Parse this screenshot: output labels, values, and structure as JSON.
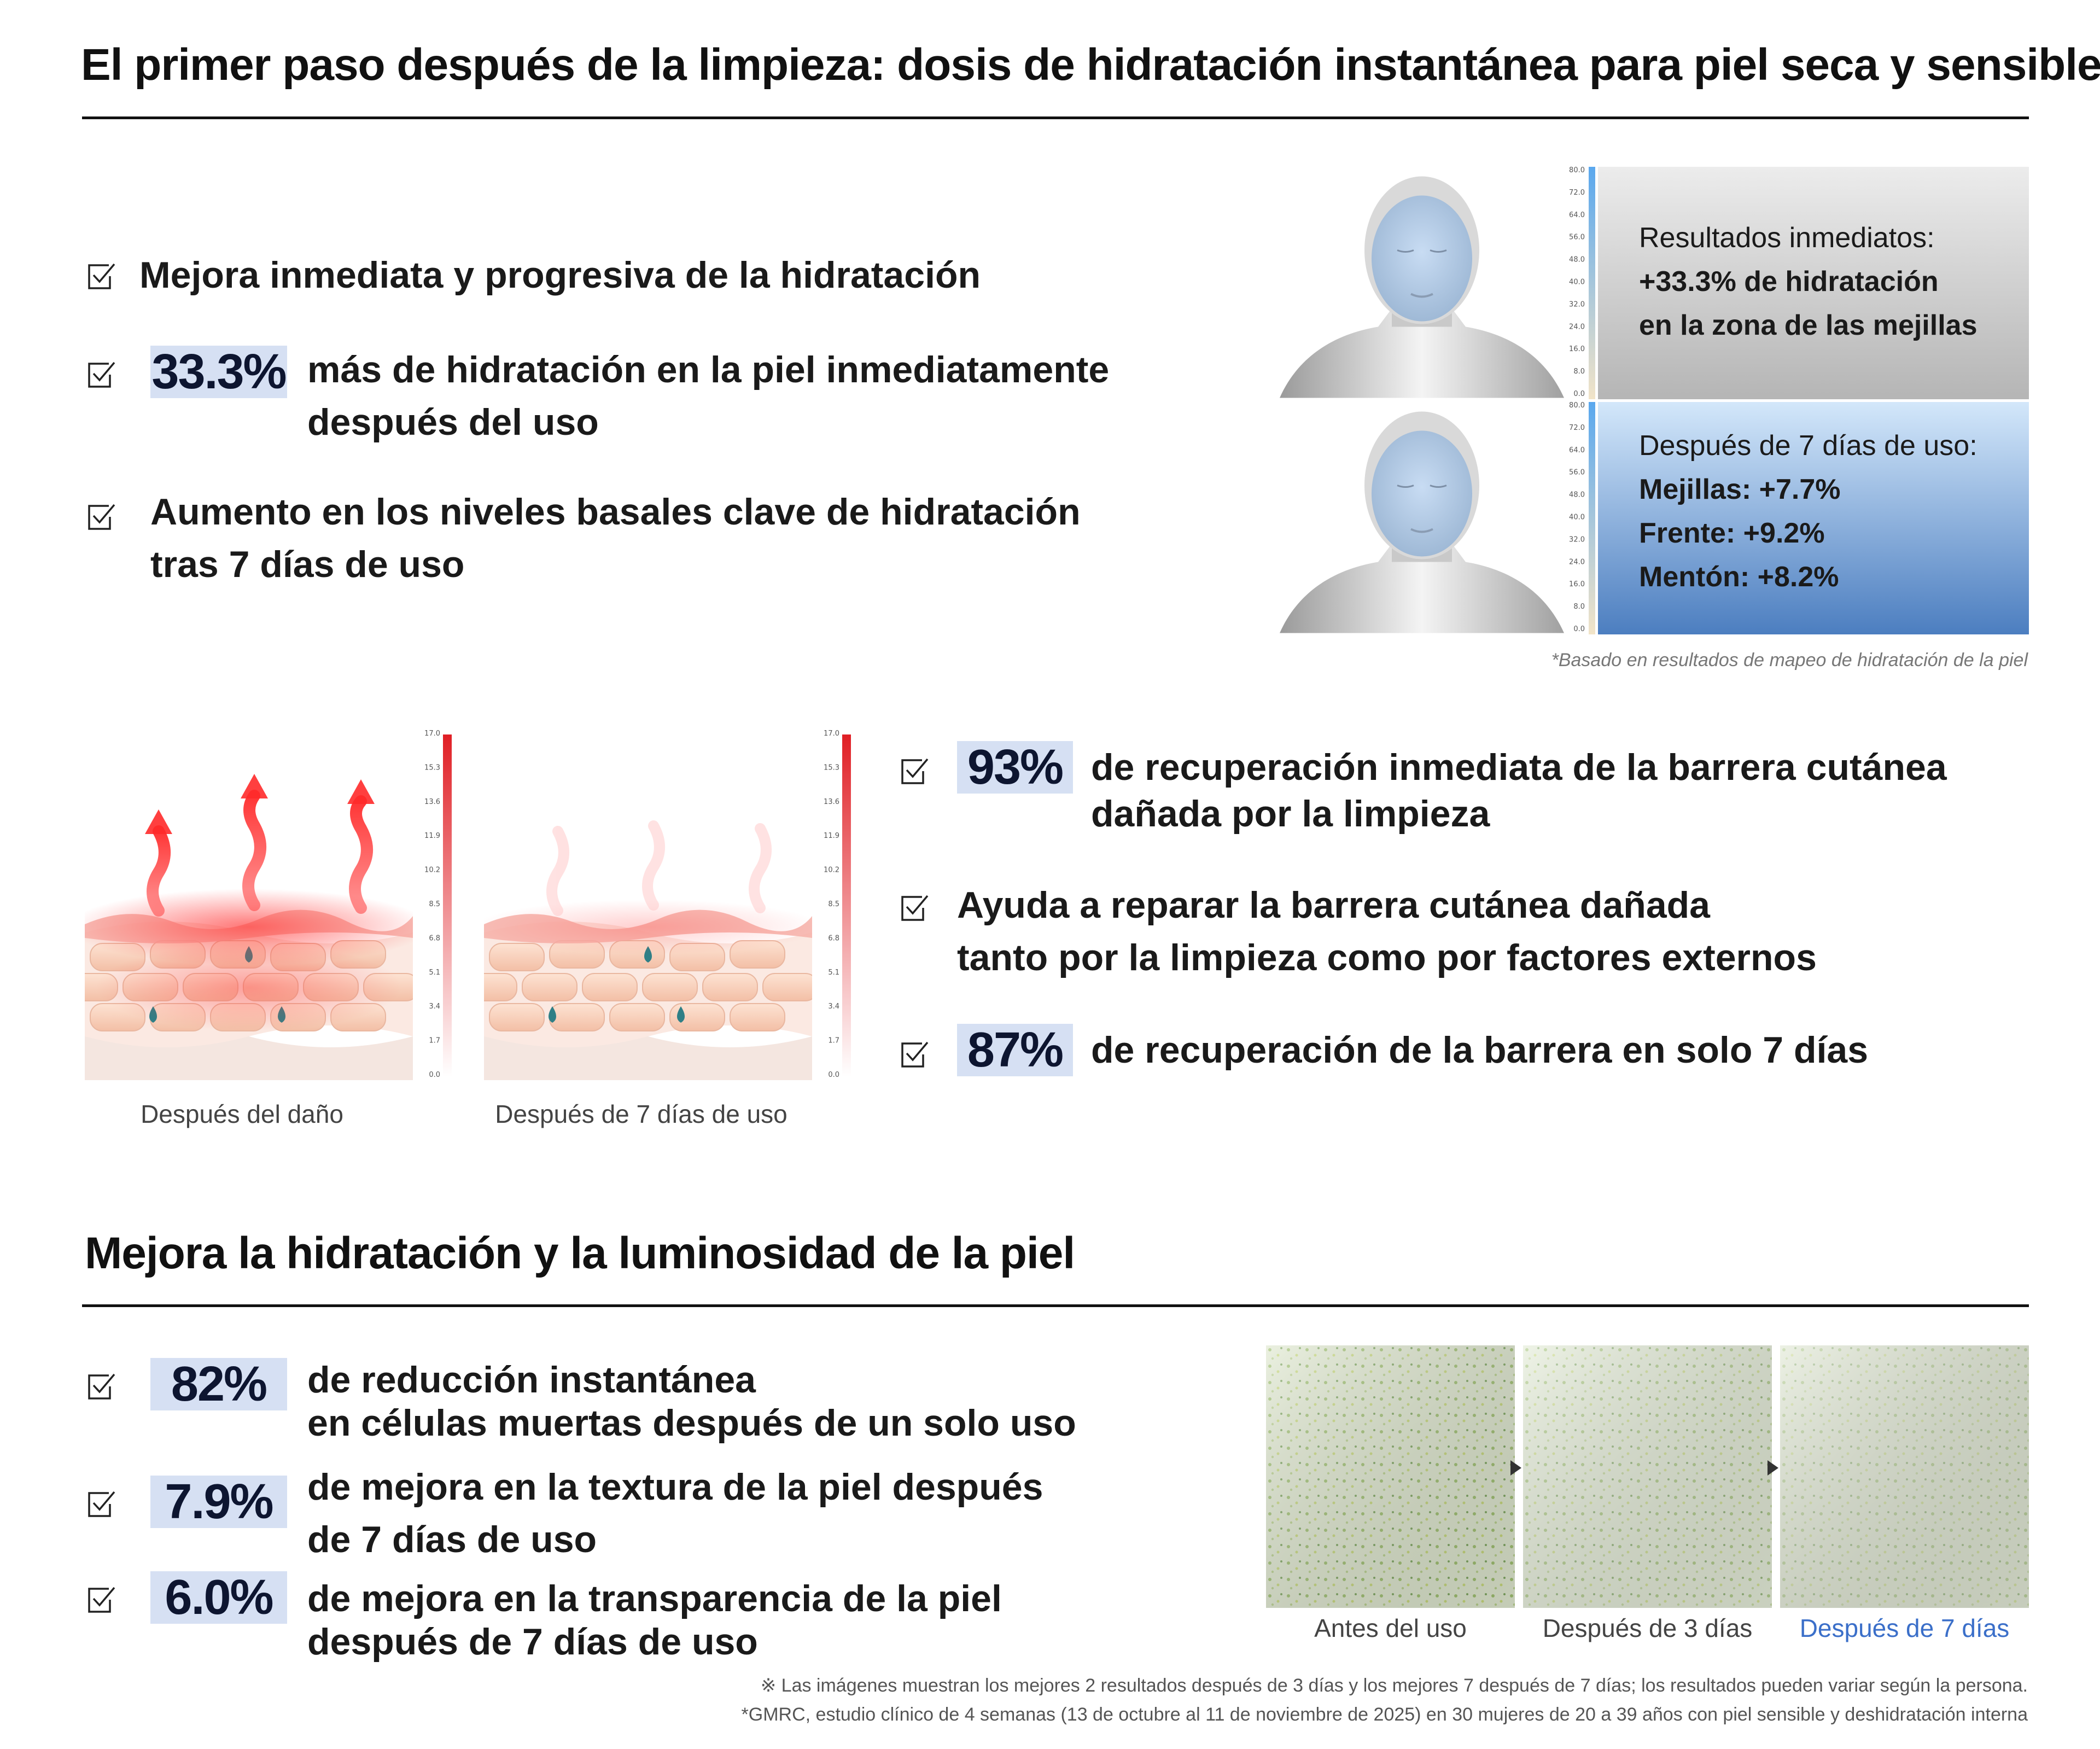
{
  "header": {
    "title": "El primer paso después de la limpieza: dosis de hidratación instantánea para piel seca y sensible"
  },
  "section1": {
    "items": [
      {
        "text": "Mejora inmediata y progresiva de la hidratación"
      },
      {
        "badge": "33.3%",
        "line1": "más de hidratación en la piel inmediatamente",
        "line2": "después del uso"
      },
      {
        "line1": "Aumento en los niveles basales clave de hidratación",
        "line2": "tras 7 días de uso"
      }
    ],
    "panel_top": {
      "line1": "Resultados inmediatos:",
      "line2": "+33.3% de hidratación",
      "line3": "en la zona de las mejillas"
    },
    "panel_bottom": {
      "line1": "Después de 7 días de uso:",
      "line2": "Mejillas: +7.7%",
      "line3": "Frente: +9.2%",
      "line4": "Mentón: +8.2%"
    },
    "hydration_scale": [
      "80.0",
      "72.0",
      "64.0",
      "56.0",
      "48.0",
      "40.0",
      "32.0",
      "24.0",
      "16.0",
      "8.0",
      "0.0"
    ],
    "footnote": "*Basado en resultados de mapeo de hidratación de la piel"
  },
  "section2": {
    "barrier_scale": [
      "17.0",
      "15.3",
      "13.6",
      "11.9",
      "10.2",
      "8.5",
      "6.8",
      "5.1",
      "3.4",
      "1.7",
      "0.0"
    ],
    "caption_left": "Después del daño",
    "caption_right": "Después de 7 días de uso",
    "items": [
      {
        "badge": "93%",
        "line1": "de recuperación inmediata de la barrera cutánea",
        "line2": "dañada por la limpieza"
      },
      {
        "line1": "Ayuda a reparar la barrera cutánea dañada",
        "line2": "tanto por la limpieza como por factores externos"
      },
      {
        "badge": "87%",
        "line1": "de recuperación de la barrera en solo 7 días"
      }
    ]
  },
  "section3": {
    "title": "Mejora la hidratación y la luminosidad de la piel",
    "items": [
      {
        "badge": "82%",
        "line1": "de reducción instantánea",
        "line2": "en células muertas después de un solo uso"
      },
      {
        "badge": "7.9%",
        "line1": "de mejora en la textura de la piel después",
        "line2": "de 7 días de uso"
      },
      {
        "badge": "6.0%",
        "line1": "de mejora en la transparencia de la piel",
        "line2": "después de 7 días de uso"
      }
    ],
    "photos": [
      {
        "caption": "Antes del uso"
      },
      {
        "caption": "Después de 3 días"
      },
      {
        "caption": "Después de 7 días",
        "color": "#3b6fc9"
      }
    ],
    "note1": "※ Las imágenes muestran los mejores 2 resultados después de 3 días y los mejores 7 después de 7 días; los resultados pueden variar según la persona.",
    "note2": "*GMRC, estudio clínico de 4 semanas (13 de octubre al 11 de noviembre de 2025) en 30 mujeres de 20 a 39 años con piel sensible y deshidratación interna"
  },
  "colors": {
    "badge_bg": "#d6e0f3",
    "accent_blue": "#3b6fc9",
    "heat_red": "#e8252a"
  },
  "icons": [
    "checkbox-icon",
    "face-icon",
    "skin-layer-icon",
    "arrow-right-icon"
  ]
}
